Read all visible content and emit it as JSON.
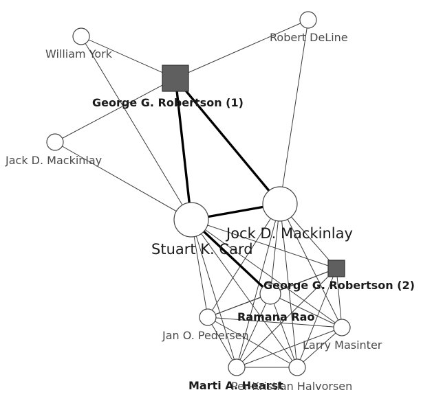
{
  "nodes": [
    {
      "id": "grr1",
      "label": "George G. Robertson (1)",
      "shape": "square",
      "style": "bold"
    },
    {
      "id": "grr2",
      "label": "George G. Robertson (2)",
      "shape": "square",
      "style": "bold"
    },
    {
      "id": "card",
      "label": "Stuart K. Card",
      "shape": "circle",
      "style": "big"
    },
    {
      "id": "mack",
      "label": "Jock D. Mackinlay",
      "shape": "circle",
      "style": "big"
    },
    {
      "id": "york",
      "label": "William York",
      "shape": "circle",
      "style": "normal"
    },
    {
      "id": "deline",
      "label": "Robert DeLine",
      "shape": "circle",
      "style": "normal"
    },
    {
      "id": "jack",
      "label": "Jack D. Mackinlay",
      "shape": "circle",
      "style": "normal"
    },
    {
      "id": "rao",
      "label": "Ramana Rao",
      "shape": "circle",
      "style": "bold"
    },
    {
      "id": "pedersen",
      "label": "Jan O. Pedersen",
      "shape": "circle",
      "style": "normal"
    },
    {
      "id": "masinter",
      "label": "Larry Masinter",
      "shape": "circle",
      "style": "normal"
    },
    {
      "id": "hearst",
      "label": "Marti A. Hearst",
      "shape": "circle",
      "style": "bold"
    },
    {
      "id": "halvorsen",
      "label": "Per-Kristian Halvorsen",
      "shape": "circle",
      "style": "normal"
    }
  ],
  "edges": [
    {
      "from": "grr1",
      "to": "card",
      "strong": true
    },
    {
      "from": "grr1",
      "to": "mack",
      "strong": true
    },
    {
      "from": "card",
      "to": "mack",
      "strong": true
    },
    {
      "from": "card",
      "to": "rao",
      "strong": true
    },
    {
      "from": "york",
      "to": "grr1",
      "strong": false
    },
    {
      "from": "york",
      "to": "card",
      "strong": false
    },
    {
      "from": "deline",
      "to": "grr1",
      "strong": false
    },
    {
      "from": "deline",
      "to": "mack",
      "strong": false
    },
    {
      "from": "jack",
      "to": "grr1",
      "strong": false
    },
    {
      "from": "jack",
      "to": "card",
      "strong": false
    },
    {
      "from": "card",
      "to": "grr2",
      "strong": false
    },
    {
      "from": "card",
      "to": "pedersen",
      "strong": false
    },
    {
      "from": "card",
      "to": "masinter",
      "strong": false
    },
    {
      "from": "card",
      "to": "hearst",
      "strong": false
    },
    {
      "from": "card",
      "to": "halvorsen",
      "strong": false
    },
    {
      "from": "mack",
      "to": "grr2",
      "strong": false
    },
    {
      "from": "mack",
      "to": "rao",
      "strong": false
    },
    {
      "from": "mack",
      "to": "pedersen",
      "strong": false
    },
    {
      "from": "mack",
      "to": "masinter",
      "strong": false
    },
    {
      "from": "mack",
      "to": "hearst",
      "strong": false
    },
    {
      "from": "mack",
      "to": "halvorsen",
      "strong": false
    },
    {
      "from": "grr2",
      "to": "rao",
      "strong": false
    },
    {
      "from": "grr2",
      "to": "pedersen",
      "strong": false
    },
    {
      "from": "grr2",
      "to": "masinter",
      "strong": false
    },
    {
      "from": "grr2",
      "to": "hearst",
      "strong": false
    },
    {
      "from": "grr2",
      "to": "halvorsen",
      "strong": false
    },
    {
      "from": "rao",
      "to": "pedersen",
      "strong": false
    },
    {
      "from": "rao",
      "to": "masinter",
      "strong": false
    },
    {
      "from": "rao",
      "to": "hearst",
      "strong": false
    },
    {
      "from": "rao",
      "to": "halvorsen",
      "strong": false
    },
    {
      "from": "pedersen",
      "to": "masinter",
      "strong": false
    },
    {
      "from": "pedersen",
      "to": "hearst",
      "strong": false
    },
    {
      "from": "pedersen",
      "to": "halvorsen",
      "strong": false
    },
    {
      "from": "masinter",
      "to": "hearst",
      "strong": false
    },
    {
      "from": "masinter",
      "to": "halvorsen",
      "strong": false
    },
    {
      "from": "hearst",
      "to": "halvorsen",
      "strong": false
    }
  ],
  "colors": {
    "background": "#ffffff",
    "edge": "#3a3a3a",
    "strong_edge": "#000000",
    "square_fill": "#5f5f5f",
    "circle_fill": "#ffffff"
  }
}
